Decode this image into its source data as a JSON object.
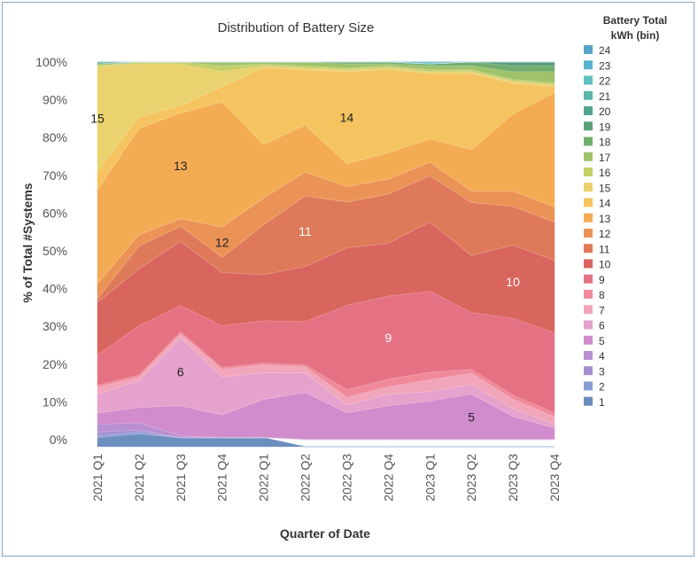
{
  "chart_data": {
    "type": "area",
    "stacked": "percent",
    "title": "Distribution of Battery Size",
    "xlabel": "Quarter of Date",
    "ylabel": "% of Total #Systems",
    "ylim": [
      0,
      100
    ],
    "y_ticks": [
      "0%",
      "10%",
      "20%",
      "30%",
      "40%",
      "50%",
      "60%",
      "70%",
      "80%",
      "90%",
      "100%"
    ],
    "categories": [
      "2021 Q1",
      "2021 Q2",
      "2021 Q3",
      "2021 Q4",
      "2022 Q1",
      "2022 Q2",
      "2022 Q3",
      "2022 Q4",
      "2023 Q1",
      "2023 Q2",
      "2023 Q3",
      "2023 Q4"
    ],
    "legend_title": "Battery Total kWh (bin)",
    "legend_position": "right",
    "series": [
      {
        "name": "1",
        "color": "#6c8ebf",
        "values": [
          0.5,
          1.5,
          0.5,
          0.5,
          0.5,
          0,
          0,
          0,
          0,
          0,
          0,
          0
        ]
      },
      {
        "name": "2",
        "color": "#8a9ed4",
        "values": [
          0.5,
          0.5,
          0,
          0,
          0,
          0,
          0,
          0,
          0,
          0,
          0,
          0
        ]
      },
      {
        "name": "3",
        "color": "#a490d0",
        "values": [
          1,
          0.5,
          0,
          0,
          0,
          0,
          0,
          0,
          0,
          0,
          0,
          0
        ]
      },
      {
        "name": "4",
        "color": "#b890d2",
        "values": [
          2,
          2,
          0.5,
          0,
          0,
          0,
          0,
          0,
          0,
          0,
          0,
          0
        ]
      },
      {
        "name": "5",
        "color": "#d08ccc",
        "values": [
          3,
          4,
          8,
          6,
          10,
          12,
          7,
          9,
          10,
          12,
          6,
          3
        ]
      },
      {
        "name": "6",
        "color": "#e4a2cc",
        "values": [
          5,
          7,
          18,
          10,
          7,
          5,
          2,
          3,
          2.5,
          2.5,
          2,
          1
        ]
      },
      {
        "name": "7",
        "color": "#f2a6bb",
        "values": [
          2,
          1,
          1,
          2,
          2,
          1.5,
          2,
          2,
          3,
          3,
          2.5,
          2
        ]
      },
      {
        "name": "8",
        "color": "#f08a9a",
        "values": [
          0.5,
          0.5,
          0.5,
          0.5,
          0.5,
          0.5,
          2,
          2,
          2,
          1,
          1,
          1
        ]
      },
      {
        "name": "9",
        "color": "#e57283",
        "values": [
          8,
          13,
          7,
          11,
          11,
          11,
          22,
          22,
          21,
          15,
          20,
          21
        ]
      },
      {
        "name": "10",
        "color": "#d9655f",
        "values": [
          14,
          15,
          17,
          14,
          12,
          14,
          15,
          14,
          18,
          15,
          19,
          19
        ]
      },
      {
        "name": "11",
        "color": "#de7a5a",
        "values": [
          1,
          6,
          4,
          4,
          13,
          18,
          12,
          13,
          12,
          14,
          10,
          10
        ]
      },
      {
        "name": "12",
        "color": "#eb9356",
        "values": [
          4,
          3,
          2,
          8,
          7,
          6,
          4,
          4,
          3.5,
          3,
          4,
          4
        ]
      },
      {
        "name": "13",
        "color": "#f4ac54",
        "values": [
          25,
          28,
          28,
          33,
          14,
          12,
          6,
          7,
          6,
          11,
          20,
          30
        ]
      },
      {
        "name": "14",
        "color": "#f5c360",
        "values": [
          5,
          3,
          2,
          4,
          20,
          14,
          24,
          22,
          17,
          20,
          8,
          1.5
        ]
      },
      {
        "name": "15",
        "color": "#ead26e",
        "values": [
          28,
          14,
          11,
          4,
          0.5,
          0.5,
          0.5,
          0.5,
          0.5,
          0.5,
          0.5,
          0.5
        ]
      },
      {
        "name": "16",
        "color": "#c5cf6a",
        "values": [
          0,
          0.5,
          0.5,
          1.5,
          0.5,
          0.5,
          0.5,
          0.5,
          0.5,
          0.5,
          0.5,
          0.5
        ]
      },
      {
        "name": "17",
        "color": "#9fc26a",
        "values": [
          0.5,
          0,
          0,
          1,
          0.5,
          1,
          1,
          0.5,
          1,
          1,
          2,
          3
        ]
      },
      {
        "name": "18",
        "color": "#73ad6e",
        "values": [
          0,
          0,
          0,
          0,
          0,
          0,
          0.5,
          0.5,
          0.5,
          1,
          1.5,
          1.5
        ]
      },
      {
        "name": "19",
        "color": "#5aa079",
        "values": [
          0,
          0,
          0,
          0,
          0,
          0,
          0,
          0,
          0,
          0,
          1,
          1
        ]
      },
      {
        "name": "20",
        "color": "#52a58f",
        "values": [
          0.5,
          0,
          0,
          0,
          0,
          0,
          0,
          0,
          0,
          0,
          0,
          0
        ]
      },
      {
        "name": "21",
        "color": "#5bb5a8",
        "values": [
          0,
          0,
          0,
          0,
          0,
          0,
          0,
          0,
          0,
          0,
          0,
          0
        ]
      },
      {
        "name": "22",
        "color": "#62c0c2",
        "values": [
          0,
          0,
          0,
          0,
          0,
          0,
          0,
          0,
          0.5,
          0,
          0,
          0
        ]
      },
      {
        "name": "23",
        "color": "#5ab3cf",
        "values": [
          0,
          0,
          0,
          0,
          0,
          0,
          0,
          0,
          0,
          0,
          0,
          0
        ]
      },
      {
        "name": "24",
        "color": "#58a4c8",
        "values": [
          0,
          0,
          0,
          0,
          0,
          0,
          0,
          0,
          0,
          0,
          0,
          0
        ]
      }
    ],
    "annotations": [
      {
        "text": "15",
        "series": "15",
        "category": "2021 Q1",
        "color": "#222222"
      },
      {
        "text": "13",
        "series": "13",
        "category": "2021 Q3",
        "color": "#222222"
      },
      {
        "text": "12",
        "series": "12",
        "category": "2021 Q4",
        "color": "#222222"
      },
      {
        "text": "6",
        "series": "6",
        "category": "2021 Q3",
        "color": "#222222"
      },
      {
        "text": "11",
        "series": "11",
        "category": "2022 Q2",
        "color": "#ffffff"
      },
      {
        "text": "14",
        "series": "14",
        "category": "2022 Q3",
        "color": "#222222"
      },
      {
        "text": "9",
        "series": "9",
        "category": "2022 Q4",
        "color": "#ffffff"
      },
      {
        "text": "5",
        "series": "5",
        "category": "2023 Q2",
        "color": "#222222"
      },
      {
        "text": "10",
        "series": "10",
        "category": "2023 Q3",
        "color": "#ffffff"
      }
    ]
  }
}
